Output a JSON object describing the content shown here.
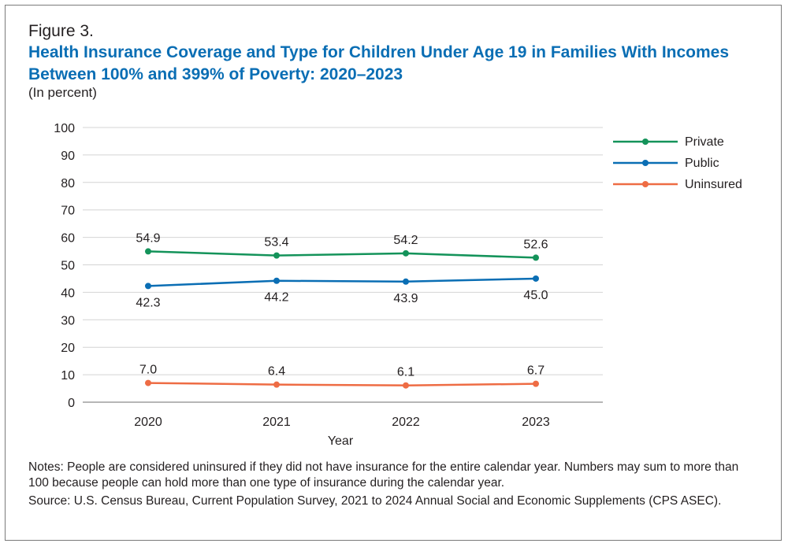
{
  "figure_label": "Figure 3.",
  "title": "Health Insurance Coverage and Type for Children Under Age 19 in Families With Incomes Between 100% and 399% of Poverty: 2020–2023",
  "subtitle": "(In percent)",
  "notes": "Notes: People are considered uninsured if they did not have insurance for the entire calendar year. Numbers may sum to more than 100 because people can hold more than one type of insurance during the calendar year.",
  "source": "Source: U.S. Census Bureau, Current Population Survey, 2021 to 2024 Annual Social and Economic Supplements (CPS ASEC).",
  "chart_data": {
    "type": "line",
    "xlabel": "Year",
    "ylabel": "",
    "categories": [
      "2020",
      "2021",
      "2022",
      "2023"
    ],
    "ylim": [
      0,
      100
    ],
    "yticks": [
      0,
      10,
      20,
      30,
      40,
      50,
      60,
      70,
      80,
      90,
      100
    ],
    "grid": true,
    "legend_position": "top-right",
    "series": [
      {
        "name": "Private",
        "color": "#14935a",
        "values": [
          54.9,
          53.4,
          54.2,
          52.6
        ],
        "labels": [
          "54.9",
          "53.4",
          "54.2",
          "52.6"
        ],
        "label_position": "above"
      },
      {
        "name": "Public",
        "color": "#0a6eb4",
        "values": [
          42.3,
          44.2,
          43.9,
          45.0
        ],
        "labels": [
          "42.3",
          "44.2",
          "43.9",
          "45.0"
        ],
        "label_position": "below"
      },
      {
        "name": "Uninsured",
        "color": "#ee6c44",
        "values": [
          7.0,
          6.4,
          6.1,
          6.7
        ],
        "labels": [
          "7.0",
          "6.4",
          "6.1",
          "6.7"
        ],
        "label_position": "above"
      }
    ]
  }
}
